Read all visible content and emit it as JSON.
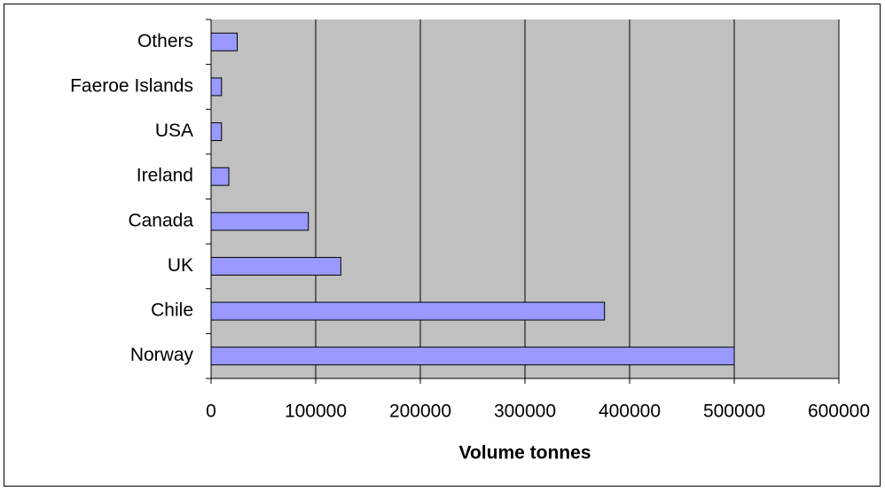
{
  "chart_data": {
    "type": "hbar",
    "x_label": "Volume tonnes",
    "categories": [
      "Norway",
      "Chile",
      "UK",
      "Canada",
      "Ireland",
      "USA",
      "Faeroe Islands",
      "Others"
    ],
    "values": [
      500000,
      376000,
      124000,
      93000,
      17000,
      10000,
      10000,
      25000
    ],
    "color": "#9999ff",
    "xlim": [
      0,
      600000
    ],
    "xticks": [
      0,
      100000,
      200000,
      300000,
      400000,
      500000,
      600000
    ],
    "grid": true,
    "plot_background": "#c0c0c0"
  }
}
